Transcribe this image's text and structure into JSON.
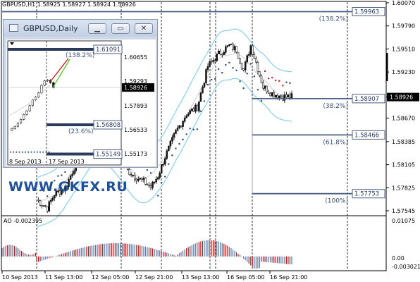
{
  "main_chart": {
    "symbol_line": "GBPUSD,H1",
    "open": "1.58925",
    "high": "1.58927",
    "low": "1.58924",
    "close": "1.58926",
    "price_scale": [
      "1.60070",
      "1.59790",
      "1.59510",
      "1.59230",
      "1.58926",
      "1.58670",
      "1.58385",
      "1.58105",
      "1.57825",
      "1.57545"
    ],
    "current_price": "1.58926",
    "levels": [
      {
        "price": "1.59963",
        "pct": "(138.2%)"
      },
      {
        "price": "1.58907",
        "pct": "(38.2%)"
      },
      {
        "price": "1.58466",
        "pct": "(61.8%)"
      },
      {
        "price": "1.57753",
        "pct": "(100%)"
      }
    ],
    "time_axis": [
      "10 Sep 2013",
      "11 Sep 13:00",
      "12 Sep 05:00",
      "12 Sep 21:00",
      "13 Sep 13:00",
      "16 Sep 05:00",
      "16 Sep 21:00"
    ]
  },
  "ao_indicator": {
    "label": "AO -0.002395",
    "scale": [
      "0.01075",
      "0.00",
      "-0.003021"
    ]
  },
  "inset_window": {
    "title": "GBPUSD,Daily",
    "buttons": [
      "minimize",
      "maximize",
      "close"
    ],
    "price_scale": [
      "1.60655",
      "1.59293",
      "1.58926",
      "1.57893",
      "1.56533",
      "1.55173"
    ],
    "levels": [
      {
        "price": "1.61091",
        "pct": "(138.2%)"
      },
      {
        "price": "1.56808",
        "pct": "(23.6%)"
      },
      {
        "price": "1.55149",
        "pct": ""
      }
    ],
    "current_price": "1.58926",
    "time_axis": [
      "8 Sep 2013",
      "17 Sep 2013"
    ]
  },
  "watermark": "WWW.GKFX.RU",
  "colors": {
    "bull_candle": "#1a1a1a",
    "bear_candle": "#ffffff",
    "band": "#87ceeb",
    "ao_up": "#5b74a8",
    "ao_down": "#c01818",
    "level_line": "#4a5f86",
    "sar_up": "#1f3f7a",
    "sar_down": "#d01010"
  }
}
